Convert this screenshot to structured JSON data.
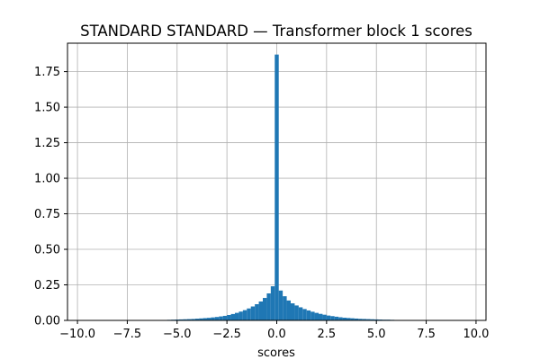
{
  "chart_data": {
    "type": "bar",
    "title": "STANDARD STANDARD — Transformer block 1 scores",
    "xlabel": "scores",
    "ylabel": "",
    "xlim": [
      -10.5,
      10.5
    ],
    "ylim": [
      0,
      1.95
    ],
    "grid": true,
    "bar_color": "#1f77b4",
    "bin_width": 0.2,
    "xticks": [
      -10.0,
      -7.5,
      -5.0,
      -2.5,
      0.0,
      2.5,
      5.0,
      7.5,
      10.0
    ],
    "xtick_labels": [
      "−10.0",
      "−7.5",
      "−5.0",
      "−2.5",
      "0.0",
      "2.5",
      "5.0",
      "7.5",
      "10.0"
    ],
    "yticks": [
      0.0,
      0.25,
      0.5,
      0.75,
      1.0,
      1.25,
      1.5,
      1.75
    ],
    "ytick_labels": [
      "0.00",
      "0.25",
      "0.50",
      "0.75",
      "1.00",
      "1.25",
      "1.50",
      "1.75"
    ],
    "bins": [
      {
        "x": -6.0,
        "y": 0.002
      },
      {
        "x": -5.8,
        "y": 0.003
      },
      {
        "x": -5.6,
        "y": 0.003
      },
      {
        "x": -5.4,
        "y": 0.004
      },
      {
        "x": -5.2,
        "y": 0.005
      },
      {
        "x": -5.0,
        "y": 0.006
      },
      {
        "x": -4.8,
        "y": 0.007
      },
      {
        "x": -4.6,
        "y": 0.008
      },
      {
        "x": -4.4,
        "y": 0.009
      },
      {
        "x": -4.2,
        "y": 0.01
      },
      {
        "x": -4.0,
        "y": 0.012
      },
      {
        "x": -3.8,
        "y": 0.014
      },
      {
        "x": -3.6,
        "y": 0.016
      },
      {
        "x": -3.4,
        "y": 0.018
      },
      {
        "x": -3.2,
        "y": 0.021
      },
      {
        "x": -3.0,
        "y": 0.024
      },
      {
        "x": -2.8,
        "y": 0.028
      },
      {
        "x": -2.6,
        "y": 0.032
      },
      {
        "x": -2.4,
        "y": 0.038
      },
      {
        "x": -2.2,
        "y": 0.045
      },
      {
        "x": -2.0,
        "y": 0.053
      },
      {
        "x": -1.8,
        "y": 0.062
      },
      {
        "x": -1.6,
        "y": 0.072
      },
      {
        "x": -1.4,
        "y": 0.084
      },
      {
        "x": -1.2,
        "y": 0.098
      },
      {
        "x": -1.0,
        "y": 0.114
      },
      {
        "x": -0.8,
        "y": 0.133
      },
      {
        "x": -0.6,
        "y": 0.158
      },
      {
        "x": -0.4,
        "y": 0.19
      },
      {
        "x": -0.2,
        "y": 0.24
      },
      {
        "x": 0.0,
        "y": 1.87
      },
      {
        "x": 0.2,
        "y": 0.21
      },
      {
        "x": 0.4,
        "y": 0.17
      },
      {
        "x": 0.6,
        "y": 0.14
      },
      {
        "x": 0.8,
        "y": 0.12
      },
      {
        "x": 1.0,
        "y": 0.105
      },
      {
        "x": 1.2,
        "y": 0.092
      },
      {
        "x": 1.4,
        "y": 0.08
      },
      {
        "x": 1.6,
        "y": 0.07
      },
      {
        "x": 1.8,
        "y": 0.061
      },
      {
        "x": 2.0,
        "y": 0.053
      },
      {
        "x": 2.2,
        "y": 0.046
      },
      {
        "x": 2.4,
        "y": 0.04
      },
      {
        "x": 2.6,
        "y": 0.034
      },
      {
        "x": 2.8,
        "y": 0.03
      },
      {
        "x": 3.0,
        "y": 0.026
      },
      {
        "x": 3.2,
        "y": 0.022
      },
      {
        "x": 3.4,
        "y": 0.019
      },
      {
        "x": 3.6,
        "y": 0.017
      },
      {
        "x": 3.8,
        "y": 0.015
      },
      {
        "x": 4.0,
        "y": 0.013
      },
      {
        "x": 4.2,
        "y": 0.011
      },
      {
        "x": 4.4,
        "y": 0.01
      },
      {
        "x": 4.6,
        "y": 0.009
      },
      {
        "x": 4.8,
        "y": 0.008
      },
      {
        "x": 5.0,
        "y": 0.007
      },
      {
        "x": 5.2,
        "y": 0.006
      },
      {
        "x": 5.4,
        "y": 0.005
      },
      {
        "x": 5.6,
        "y": 0.005
      },
      {
        "x": 5.8,
        "y": 0.004
      },
      {
        "x": 6.0,
        "y": 0.003
      },
      {
        "x": 6.2,
        "y": 0.003
      },
      {
        "x": 6.4,
        "y": 0.002
      }
    ]
  }
}
